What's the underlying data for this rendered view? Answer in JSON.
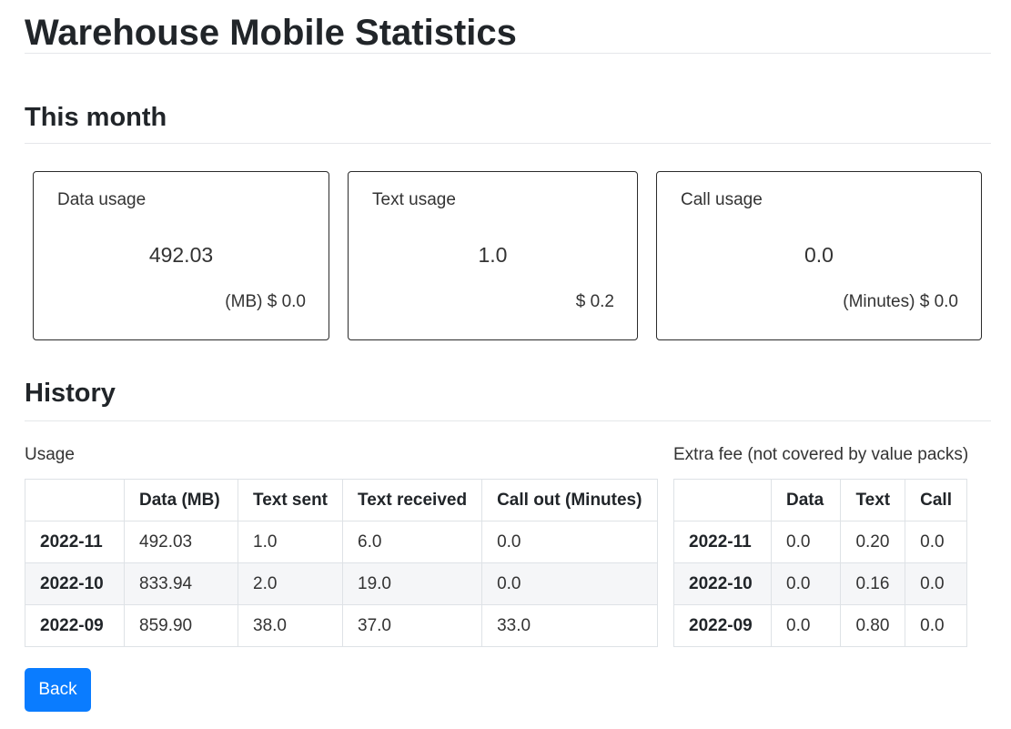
{
  "page": {
    "title": "Warehouse Mobile Statistics"
  },
  "month": {
    "heading": "This month",
    "cards": [
      {
        "label": "Data usage",
        "value": "492.03",
        "footer": "(MB) $ 0.0"
      },
      {
        "label": "Text usage",
        "value": "1.0",
        "footer": "$ 0.2"
      },
      {
        "label": "Call usage",
        "value": "0.0",
        "footer": "(Minutes) $ 0.0"
      }
    ]
  },
  "history": {
    "heading": "History",
    "usage": {
      "caption": "Usage",
      "headers": [
        "",
        "Data (MB)",
        "Text sent",
        "Text received",
        "Call out (Minutes)"
      ],
      "rows": [
        {
          "month": "2022-11",
          "cells": [
            "492.03",
            "1.0",
            "6.0",
            "0.0"
          ]
        },
        {
          "month": "2022-10",
          "cells": [
            "833.94",
            "2.0",
            "19.0",
            "0.0"
          ]
        },
        {
          "month": "2022-09",
          "cells": [
            "859.90",
            "38.0",
            "37.0",
            "33.0"
          ]
        }
      ]
    },
    "fees": {
      "caption": "Extra fee (not covered by value packs)",
      "headers": [
        "",
        "Data",
        "Text",
        "Call"
      ],
      "rows": [
        {
          "month": "2022-11",
          "cells": [
            "0.0",
            "0.20",
            "0.0"
          ]
        },
        {
          "month": "2022-10",
          "cells": [
            "0.0",
            "0.16",
            "0.0"
          ]
        },
        {
          "month": "2022-09",
          "cells": [
            "0.0",
            "0.80",
            "0.0"
          ]
        }
      ]
    }
  },
  "actions": {
    "back_label": "Back"
  }
}
